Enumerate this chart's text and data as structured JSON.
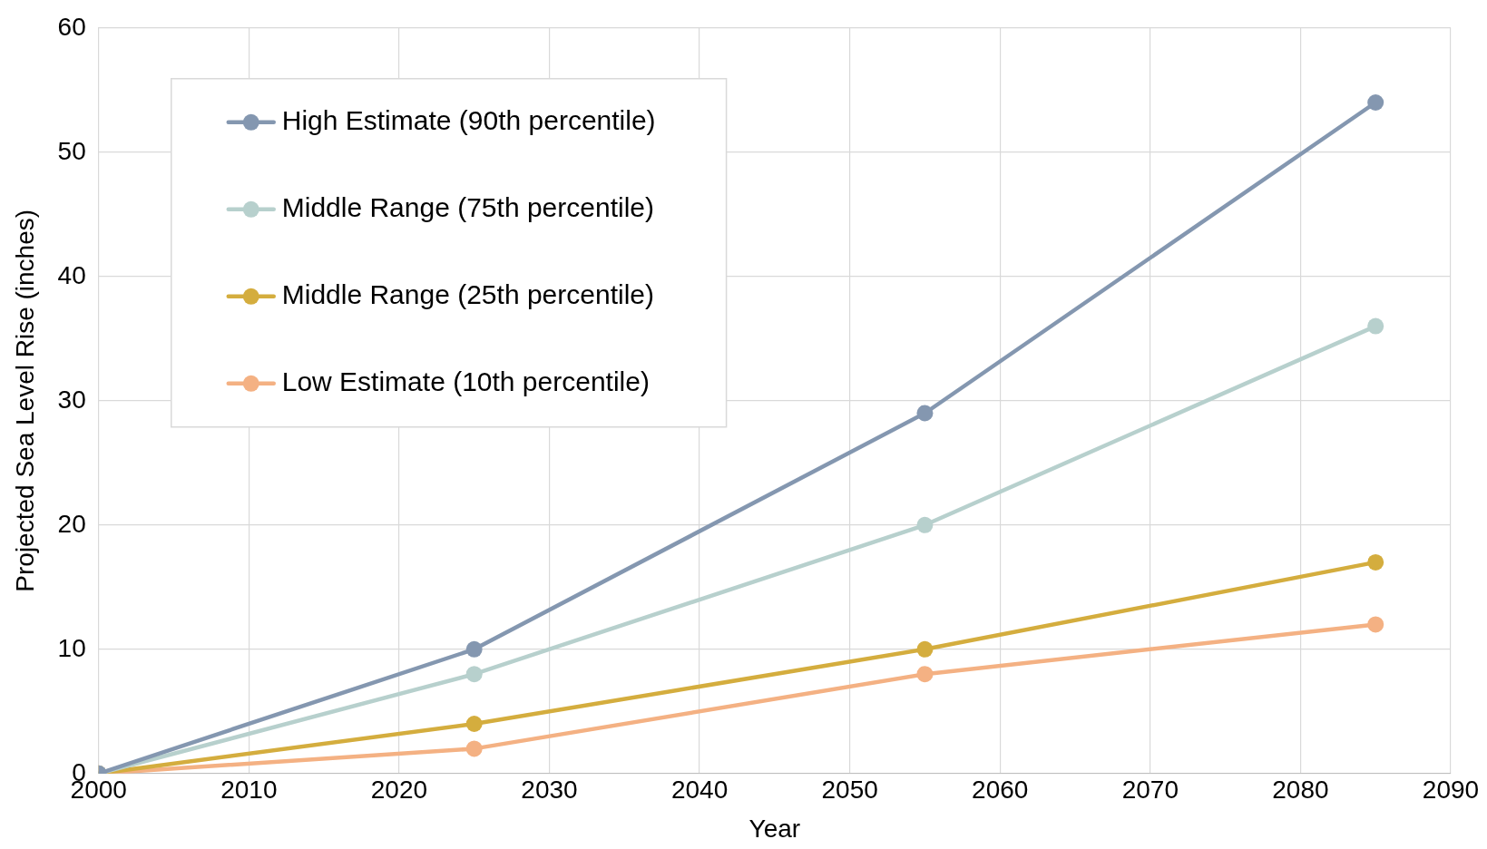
{
  "chart_data": {
    "type": "line",
    "xlabel": "Year",
    "ylabel": "Projected Sea Level Rise (inches)",
    "x": [
      2000,
      2025,
      2055,
      2085
    ],
    "series": [
      {
        "name": "High Estimate (90th percentile)",
        "color": "#8497b0",
        "values": [
          0,
          10,
          29,
          54
        ]
      },
      {
        "name": "Middle Range (75th percentile)",
        "color": "#b7d0cd",
        "values": [
          0,
          8,
          20,
          36
        ]
      },
      {
        "name": "Middle Range (25th percentile)",
        "color": "#d4ad3e",
        "values": [
          0,
          4,
          10,
          17
        ]
      },
      {
        "name": "Low Estimate (10th percentile)",
        "color": "#f4b183",
        "values": [
          0,
          2,
          8,
          12
        ]
      }
    ],
    "xlim": [
      2000,
      2090
    ],
    "xticks": [
      2000,
      2010,
      2020,
      2030,
      2040,
      2050,
      2060,
      2070,
      2080,
      2090
    ],
    "ylim": [
      0,
      60
    ],
    "yticks": [
      0,
      10,
      20,
      30,
      40,
      50,
      60
    ],
    "grid": true,
    "legend": "top left",
    "marker": "circle",
    "line_style": "solid"
  }
}
